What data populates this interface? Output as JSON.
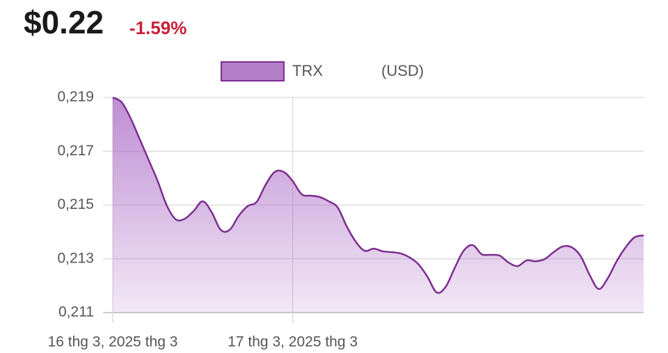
{
  "header": {
    "price": "$0.22",
    "change": "-1.59%"
  },
  "chart_data": {
    "type": "area",
    "legend_note": "(USD)",
    "grid": true,
    "ylim": [
      0.211,
      0.219
    ],
    "yticks": [
      {
        "value": 0.219,
        "label": "0,219"
      },
      {
        "value": 0.217,
        "label": "0,217"
      },
      {
        "value": 0.215,
        "label": "0,215"
      },
      {
        "value": 0.213,
        "label": "0,213"
      },
      {
        "value": 0.211,
        "label": "0,211"
      }
    ],
    "categories": [
      "16 thg 3, 2025 thg 3",
      null,
      null,
      null,
      null,
      null,
      null,
      null,
      null,
      null,
      null,
      null,
      null,
      null,
      null,
      null,
      null,
      null,
      null,
      null,
      "17 thg 3, 2025 thg 3",
      null,
      null,
      null,
      null,
      null,
      null,
      null,
      null,
      null,
      null,
      null,
      null,
      null,
      null,
      null,
      null,
      null,
      null,
      null,
      null,
      null,
      null,
      null,
      null,
      null,
      null,
      null,
      null,
      null,
      null,
      null,
      null,
      null,
      null,
      null,
      null,
      null,
      null,
      null
    ],
    "series": [
      {
        "name": "TRX",
        "color": "#7b2d8e",
        "values": [
          0.219,
          0.21882,
          0.21822,
          0.21745,
          0.21667,
          0.21589,
          0.21499,
          0.21447,
          0.21449,
          0.21478,
          0.21514,
          0.21473,
          0.21408,
          0.21408,
          0.2146,
          0.21496,
          0.21512,
          0.21576,
          0.21623,
          0.21623,
          0.21589,
          0.2154,
          0.21535,
          0.2153,
          0.21514,
          0.21491,
          0.21421,
          0.21364,
          0.2133,
          0.21338,
          0.21328,
          0.21325,
          0.2132,
          0.21305,
          0.21279,
          0.21232,
          0.21175,
          0.21196,
          0.21266,
          0.2133,
          0.21351,
          0.21317,
          0.21315,
          0.21312,
          0.21286,
          0.21273,
          0.21294,
          0.21291,
          0.21299,
          0.21325,
          0.21346,
          0.21343,
          0.2131,
          0.2124,
          0.21188,
          0.21227,
          0.21291,
          0.21343,
          0.2138,
          0.21387
        ]
      }
    ]
  }
}
